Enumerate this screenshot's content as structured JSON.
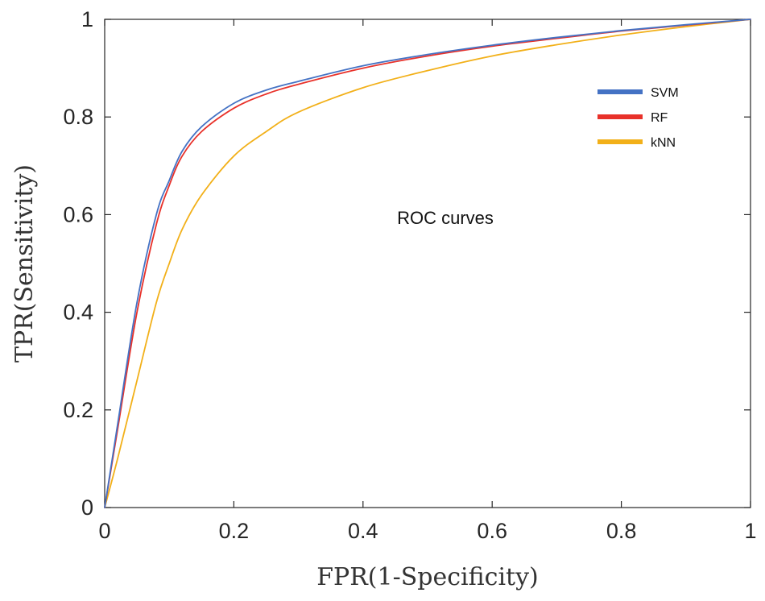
{
  "chart_data": {
    "type": "line",
    "title": "",
    "xlabel": "FPR(1-Specificity)",
    "ylabel": "TPR(Sensitivity)",
    "xlim": [
      0,
      1
    ],
    "ylim": [
      0,
      1
    ],
    "xticks": [
      0,
      0.2,
      0.4,
      0.6,
      0.8,
      1
    ],
    "yticks": [
      0,
      0.2,
      0.4,
      0.6,
      0.8,
      1
    ],
    "xtick_labels": [
      "0",
      "0.2",
      "0.4",
      "0.6",
      "0.8",
      "1"
    ],
    "ytick_labels": [
      "0",
      "0.2",
      "0.4",
      "0.6",
      "0.8",
      "1"
    ],
    "grid": false,
    "legend_position": "top-right",
    "annotations": [
      {
        "text": "ROC curves",
        "x": 0.53,
        "y": 0.6
      }
    ],
    "series": [
      {
        "name": "SVM",
        "color": "#4472C4",
        "x": [
          0,
          0.02,
          0.05,
          0.08,
          0.1,
          0.12,
          0.15,
          0.2,
          0.25,
          0.3,
          0.4,
          0.5,
          0.6,
          0.7,
          0.8,
          0.9,
          1.0
        ],
        "y": [
          0,
          0.17,
          0.42,
          0.6,
          0.67,
          0.73,
          0.78,
          0.828,
          0.855,
          0.873,
          0.905,
          0.928,
          0.947,
          0.963,
          0.977,
          0.989,
          1.0
        ]
      },
      {
        "name": "RF",
        "color": "#E8312A",
        "x": [
          0,
          0.02,
          0.05,
          0.08,
          0.1,
          0.12,
          0.15,
          0.2,
          0.25,
          0.3,
          0.4,
          0.5,
          0.6,
          0.7,
          0.8,
          0.9,
          1.0
        ],
        "y": [
          0,
          0.16,
          0.4,
          0.58,
          0.66,
          0.72,
          0.77,
          0.818,
          0.847,
          0.867,
          0.9,
          0.925,
          0.945,
          0.961,
          0.976,
          0.988,
          1.0
        ]
      },
      {
        "name": "kNN",
        "color": "#F2B019",
        "x": [
          0,
          0.02,
          0.05,
          0.08,
          0.1,
          0.12,
          0.15,
          0.2,
          0.25,
          0.3,
          0.4,
          0.5,
          0.6,
          0.7,
          0.8,
          0.9,
          1.0
        ],
        "y": [
          0,
          0.1,
          0.26,
          0.42,
          0.5,
          0.57,
          0.64,
          0.72,
          0.77,
          0.81,
          0.86,
          0.895,
          0.925,
          0.948,
          0.968,
          0.985,
          1.0
        ]
      }
    ]
  }
}
